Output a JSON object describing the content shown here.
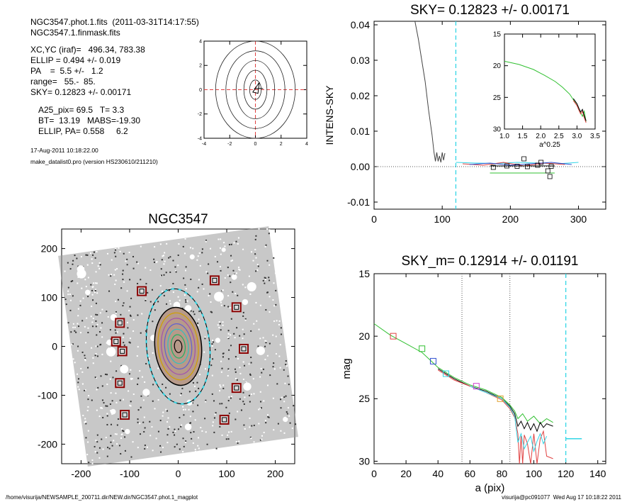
{
  "header": {
    "file_line": "NGC3547.phot.1.fits  (2011-03-31T14:17:55)",
    "mask_line": "NGC3547.1.finmask.fits",
    "xcyc": "XC,YC (iraf)=   496.34, 783.38",
    "ellip": "ELLIP = 0.494 +/- 0.019",
    "pa": "PA    =  5.5 +/-   1.2",
    "range": "range=   55.-  85.",
    "sky": "SKY= 0.12823 +/- 0.00171",
    "a25": "A25_pix= 69.5   T= 3.3",
    "bt": "BT=  13.19   MABS=-19.30",
    "ellip_pa": "ELLIP, PA= 0.558     6.2",
    "date": "17-Aug-2011 10:18:22.00",
    "program": "make_datalist0.pro (version HS230610/211210)"
  },
  "footer": {
    "path": "/home/visurija/NEWSAMPLE_200711.dir/NEW.dir/NGC3547.phot.1_magplot",
    "user": "visurija@pc091077  Wed Aug 17 10:18:22 2011"
  },
  "colors": {
    "cyan": "#33d6e6",
    "red": "#e04040",
    "green": "#30c030",
    "blue": "#3050d0",
    "magenta": "#d040d0",
    "darkred": "#8b0000"
  },
  "chart_data": [
    {
      "type": "line",
      "title": "",
      "xlim": [
        -4,
        4
      ],
      "ylim": [
        -4,
        4
      ],
      "xticks": [
        "-4",
        "-2",
        "0",
        "2",
        "4"
      ],
      "yticks": [
        "-4",
        "-2",
        "0",
        "2",
        "4"
      ]
    },
    {
      "type": "line",
      "title": "SKY= 0.12823 +/- 0.00171",
      "xlabel": "",
      "ylabel": "INTENS-SKY",
      "xlim": [
        0,
        340
      ],
      "ylim": [
        -0.012,
        0.041
      ],
      "xticks": [
        "0",
        "100",
        "200",
        "300"
      ],
      "yticks": [
        "-0.01",
        "0.00",
        "0.01",
        "0.02",
        "0.03",
        "0.04"
      ],
      "sky_line_x": 120,
      "series": [
        {
          "color": "#444444",
          "x": [
            60,
            65,
            70,
            75,
            80,
            85,
            88,
            90,
            92,
            94,
            96,
            98,
            100,
            102,
            104
          ],
          "y": [
            0.041,
            0.036,
            0.03,
            0.024,
            0.016,
            0.009,
            0.004,
            0.0015,
            0.004,
            0.0015,
            0.003,
            0.0012,
            0.004,
            0.0018,
            0.0038
          ]
        },
        {
          "color": "#33d6e6",
          "x": [
            120,
            150,
            180,
            210,
            240,
            270,
            300
          ],
          "y": [
            0.0012,
            0.001,
            0.0009,
            0.0012,
            0.001,
            0.0008,
            0.0012
          ]
        },
        {
          "color": "#e04040",
          "x": [
            130,
            160,
            190,
            220,
            250,
            280
          ],
          "y": [
            0.0008,
            0.0004,
            0.0012,
            0.0002,
            0.001,
            0.0006
          ]
        },
        {
          "color": "#3050d0",
          "x": [
            140,
            170,
            200,
            230,
            260,
            290
          ],
          "y": [
            0.0006,
            0.001,
            0.0004,
            0.0008,
            0.0012,
            0.0006
          ]
        },
        {
          "color": "#30c030",
          "x": [
            170,
            265
          ],
          "y": [
            -0.0018,
            -0.0018
          ]
        },
        {
          "color": "#000000",
          "x": [
            170,
            265
          ],
          "y": [
            0.0002,
            0.0002
          ]
        }
      ],
      "boxes": {
        "x": [
          175,
          195,
          210,
          220,
          225,
          240,
          245,
          255,
          258,
          260
        ],
        "y": [
          -0.0002,
          0.0002,
          0.0001,
          0.0022,
          0.0,
          0.0004,
          0.0012,
          -0.0012,
          -0.0028,
          0.0001
        ]
      },
      "inset": {
        "xlabel": "a^0.25",
        "xlim": [
          1.0,
          3.5
        ],
        "ylim": [
          15,
          30
        ],
        "xticks": [
          "1.0",
          "1.5",
          "2.0",
          "2.5",
          "3.0",
          "3.5"
        ],
        "yticks": [
          "15",
          "20",
          "25",
          "30"
        ],
        "x": [
          1.0,
          1.4,
          1.8,
          2.1,
          2.4,
          2.6,
          2.8,
          2.95,
          3.05,
          3.1,
          3.15,
          3.2,
          3.25
        ],
        "y": [
          19.3,
          19.8,
          20.6,
          21.5,
          22.5,
          23.4,
          24.5,
          25.8,
          26.8,
          27.4,
          28.0,
          27.2,
          28.8
        ]
      }
    },
    {
      "type": "scatter",
      "title": "NGC3547",
      "xlim": [
        -240,
        240
      ],
      "ylim": [
        -240,
        240
      ],
      "xticks": [
        "-200",
        "-100",
        "0",
        "100",
        "200"
      ],
      "yticks": [
        "-200",
        "-100",
        "0",
        "100",
        "200"
      ],
      "sky_boxes": {
        "x": [
          -75,
          75,
          120,
          135,
          120,
          95,
          -110,
          -120,
          -115,
          -128,
          -120
        ],
        "y": [
          113,
          135,
          80,
          -5,
          -85,
          -150,
          -140,
          -75,
          -10,
          10,
          48
        ]
      },
      "ellipse_axes": {
        "inner_a": 80,
        "inner_b": 48,
        "outer_a": 118,
        "outer_b": 65,
        "pa_deg": 5.5
      }
    },
    {
      "type": "line",
      "title": "SKY_m=  0.12914 +/- 0.01191",
      "xlabel": "a (pix)",
      "ylabel": "mag",
      "xlim": [
        0,
        145
      ],
      "ylim": [
        15,
        30.2
      ],
      "xticks": [
        "0",
        "20",
        "40",
        "60",
        "80",
        "100",
        "120",
        "140"
      ],
      "yticks": [
        "15",
        "20",
        "25",
        "30"
      ],
      "vlines_dotted": [
        55,
        85
      ],
      "sky_line_x": 120,
      "series": [
        {
          "name": "",
          "color": "#30c030",
          "x": [
            0,
            10,
            20,
            30,
            40,
            50,
            60,
            70,
            80,
            85,
            88,
            90,
            93,
            96,
            100,
            104,
            108,
            112
          ],
          "y": [
            19.0,
            19.9,
            20.6,
            21.3,
            22.5,
            23.3,
            23.9,
            24.3,
            24.9,
            25.5,
            26.0,
            26.6,
            26.2,
            26.8,
            26.4,
            27.0,
            26.6,
            26.9
          ]
        },
        {
          "name": "",
          "color": "#000000",
          "x": [
            40,
            50,
            60,
            70,
            80,
            85,
            88,
            90,
            92,
            94,
            96,
            98,
            100,
            102,
            104,
            106,
            108,
            112
          ],
          "y": [
            22.6,
            23.4,
            24.0,
            24.4,
            25.0,
            25.6,
            26.2,
            27.2,
            26.8,
            27.4,
            26.9,
            27.5,
            27.0,
            27.6,
            26.9,
            27.3,
            27.0,
            27.2
          ]
        },
        {
          "name": "",
          "color": "#e04040",
          "x": [
            40,
            50,
            60,
            70,
            80,
            85,
            88,
            90,
            91,
            92,
            93,
            94,
            96,
            98,
            100,
            102,
            104,
            106,
            108,
            112
          ],
          "y": [
            22.7,
            23.5,
            24.0,
            24.5,
            25.1,
            25.8,
            26.5,
            27.8,
            30.2,
            28.0,
            30.2,
            27.9,
            28.6,
            30.2,
            27.8,
            30.2,
            28.2,
            27.6,
            29.6,
            29.8
          ]
        },
        {
          "name": "",
          "color": "#33d6e6",
          "x": [
            60,
            70,
            80,
            85,
            88,
            90,
            92,
            94,
            96,
            98,
            100,
            102,
            104,
            106,
            108
          ],
          "y": [
            24.0,
            24.5,
            25.0,
            25.7,
            26.4,
            28.5,
            27.8,
            29.0,
            28.5,
            28.0,
            29.2,
            28.4,
            27.8,
            28.6,
            28.0
          ]
        }
      ],
      "boxes": [
        {
          "x": 12,
          "y": 20.0,
          "color": "#e04040"
        },
        {
          "x": 30,
          "y": 21.0,
          "color": "#30c030"
        },
        {
          "x": 37,
          "y": 22.0,
          "color": "#3050d0"
        },
        {
          "x": 45,
          "y": 23.0,
          "color": "#33d6e6"
        },
        {
          "x": 64,
          "y": 24.0,
          "color": "#d040d0"
        },
        {
          "x": 79,
          "y": 25.0,
          "color": "#e0a030"
        }
      ],
      "sky_level": {
        "x": [
          120,
          130
        ],
        "y": [
          28.2,
          28.2
        ]
      }
    }
  ]
}
